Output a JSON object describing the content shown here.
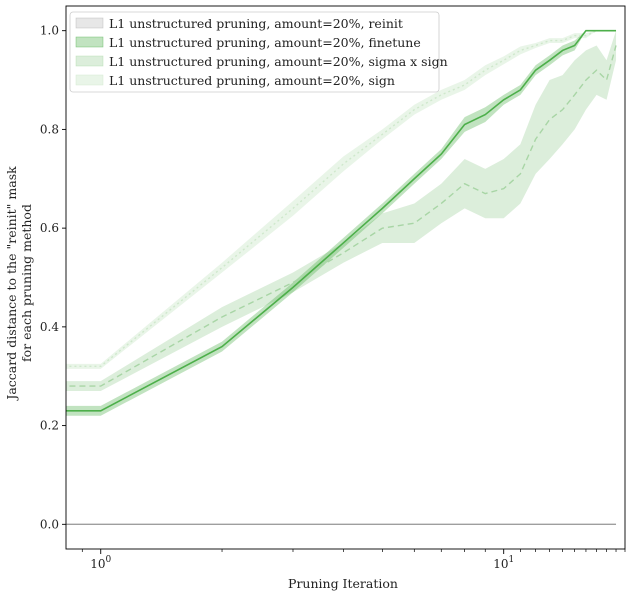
{
  "chart_data": {
    "type": "line",
    "title": "",
    "xlabel": "Pruning Iteration",
    "ylabel_lines": [
      "Jaccard distance to the \"reinit\" mask",
      "for each pruning method"
    ],
    "xscale": "log",
    "xlim": [
      0.82,
      20
    ],
    "ylim": [
      -0.05,
      1.05
    ],
    "x_ticks": [
      {
        "value": 1,
        "base": "10",
        "exp": "0"
      },
      {
        "value": 10,
        "base": "10",
        "exp": "1"
      }
    ],
    "y_ticks": [
      0.0,
      0.2,
      0.4,
      0.6,
      0.8,
      1.0
    ],
    "y_tick_labels": [
      "0.0",
      "0.2",
      "0.4",
      "0.6",
      "0.8",
      "1.0"
    ],
    "grid": false,
    "legend_position": "top-left",
    "series": [
      {
        "name": "L1 unstructured pruning, amount=20%, reinit",
        "color": "#9e9e9e",
        "style": "solid",
        "x": [
          0,
          1,
          2,
          3,
          4,
          5,
          6,
          7,
          8,
          9,
          10,
          11,
          12,
          13,
          14,
          15,
          16,
          17,
          18,
          19
        ],
        "y": [
          0,
          0,
          0,
          0,
          0,
          0,
          0,
          0,
          0,
          0,
          0,
          0,
          0,
          0,
          0,
          0,
          0,
          0,
          0,
          0
        ],
        "spread": [
          0,
          0,
          0,
          0,
          0,
          0,
          0,
          0,
          0,
          0,
          0,
          0,
          0,
          0,
          0,
          0,
          0,
          0,
          0,
          0
        ]
      },
      {
        "name": "L1 unstructured pruning, amount=20%, finetune",
        "color": "#4daf4a",
        "style": "solid",
        "x": [
          0,
          1,
          2,
          3,
          4,
          5,
          6,
          7,
          8,
          9,
          10,
          11,
          12,
          13,
          14,
          15,
          16,
          17,
          18,
          19
        ],
        "y": [
          0.23,
          0.23,
          0.36,
          0.48,
          0.57,
          0.64,
          0.7,
          0.75,
          0.81,
          0.83,
          0.86,
          0.88,
          0.92,
          0.94,
          0.96,
          0.97,
          1.0,
          1.0,
          1.0,
          1.0
        ],
        "spread": [
          0.01,
          0.01,
          0.01,
          0.01,
          0.01,
          0.01,
          0.01,
          0.01,
          0.015,
          0.015,
          0.01,
          0.01,
          0.01,
          0.01,
          0.01,
          0.01,
          0.0,
          0.0,
          0.0,
          0.0
        ]
      },
      {
        "name": "L1 unstructured pruning, amount=20%, sigma x sign",
        "color": "#a8d5a5",
        "style": "dashed",
        "x": [
          0,
          1,
          2,
          3,
          4,
          5,
          6,
          7,
          8,
          9,
          10,
          11,
          12,
          13,
          14,
          15,
          16,
          17,
          18,
          19
        ],
        "y": [
          0.28,
          0.28,
          0.42,
          0.49,
          0.55,
          0.6,
          0.61,
          0.65,
          0.69,
          0.67,
          0.68,
          0.71,
          0.78,
          0.82,
          0.84,
          0.87,
          0.9,
          0.92,
          0.9,
          0.97
        ],
        "spread": [
          0.01,
          0.01,
          0.02,
          0.02,
          0.02,
          0.03,
          0.04,
          0.04,
          0.05,
          0.05,
          0.06,
          0.06,
          0.07,
          0.08,
          0.07,
          0.07,
          0.06,
          0.05,
          0.04,
          0.03
        ]
      },
      {
        "name": "L1 unstructured pruning, amount=20%, sign",
        "color": "#cfe8cc",
        "style": "dotted",
        "x": [
          0,
          1,
          2,
          3,
          4,
          5,
          6,
          7,
          8,
          9,
          10,
          11,
          12,
          13,
          14,
          15,
          16,
          17,
          18,
          19
        ],
        "y": [
          0.32,
          0.32,
          0.52,
          0.64,
          0.73,
          0.79,
          0.84,
          0.87,
          0.89,
          0.92,
          0.94,
          0.96,
          0.97,
          0.98,
          0.98,
          0.99,
          0.99,
          1.0,
          1.0,
          1.0
        ],
        "spread": [
          0.005,
          0.005,
          0.01,
          0.015,
          0.015,
          0.01,
          0.01,
          0.01,
          0.01,
          0.01,
          0.008,
          0.008,
          0.005,
          0.005,
          0.005,
          0.005,
          0.005,
          0.0,
          0.0,
          0.0
        ]
      }
    ]
  }
}
